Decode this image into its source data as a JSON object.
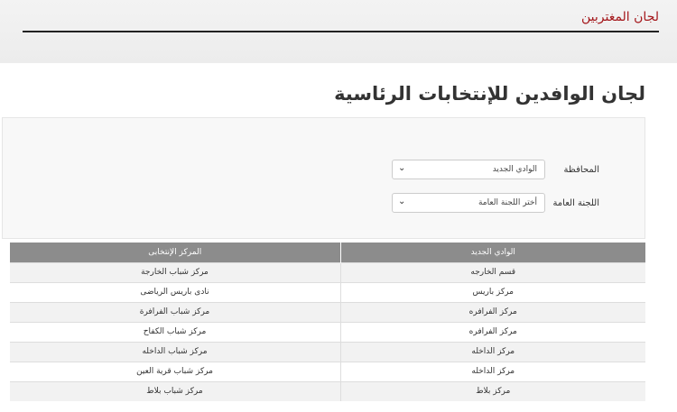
{
  "header": {
    "title": "لجان المغتربين"
  },
  "page": {
    "heading": "لجان الوافدين للإنتخابات الرئاسية"
  },
  "form": {
    "governorate": {
      "label": "المحافظة",
      "value": "الوادي الجديد"
    },
    "committee": {
      "label": "اللجنة العامة",
      "value": "أختر اللجنة العامة"
    }
  },
  "table": {
    "headers": [
      "الوادي الجديد",
      "المركز الإنتخابى"
    ],
    "rows": [
      [
        "قسم الخارجه",
        "مركز شباب الخارجة"
      ],
      [
        "مركز باريس",
        "نادى باريس الرياضى"
      ],
      [
        "مركز الفرافره",
        "مركز شباب الفرافرة"
      ],
      [
        "مركز الفرافره",
        "مركز شباب الكفاح"
      ],
      [
        "مركز الداخله",
        "مركز شباب الداخله"
      ],
      [
        "مركز الداخله",
        "مركز شباب قرية العين"
      ],
      [
        "مركز بلاط",
        "مركز شباب بلاط"
      ]
    ]
  }
}
